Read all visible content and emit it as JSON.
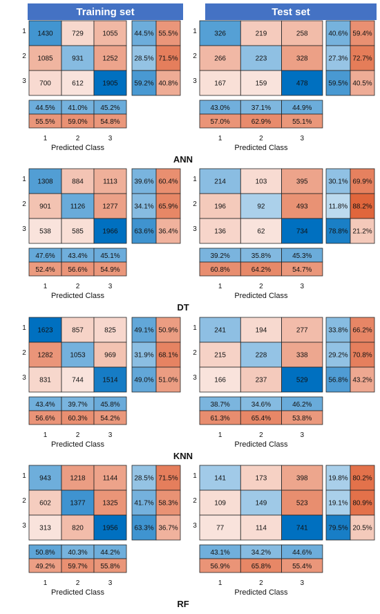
{
  "headers": {
    "train": "Training set",
    "test": "Test set"
  },
  "colors": {
    "blue": "#0070c0",
    "orange": "#e0643a",
    "header": "#4472c4"
  },
  "chart_data": {
    "type": "heatmap",
    "row_labels": [
      "1",
      "2",
      "3"
    ],
    "col_labels": [
      "1",
      "2",
      "3"
    ],
    "xlabel": "Predicted Class",
    "panels": [
      {
        "model": "ANN",
        "train": {
          "matrix": [
            [
              1430,
              729,
              1055
            ],
            [
              1085,
              931,
              1252
            ],
            [
              700,
              612,
              1905
            ]
          ],
          "row_summary": [
            [
              "44.5%",
              "55.5%"
            ],
            [
              "28.5%",
              "71.5%"
            ],
            [
              "59.2%",
              "40.8%"
            ]
          ],
          "col_summary": [
            [
              "44.5%",
              "41.0%",
              "45.2%"
            ],
            [
              "55.5%",
              "59.0%",
              "54.8%"
            ]
          ]
        },
        "test": {
          "matrix": [
            [
              326,
              219,
              258
            ],
            [
              266,
              223,
              328
            ],
            [
              167,
              159,
              478
            ]
          ],
          "row_summary": [
            [
              "40.6%",
              "59.4%"
            ],
            [
              "27.3%",
              "72.7%"
            ],
            [
              "59.5%",
              "40.5%"
            ]
          ],
          "col_summary": [
            [
              "43.0%",
              "37.1%",
              "44.9%"
            ],
            [
              "57.0%",
              "62.9%",
              "55.1%"
            ]
          ]
        }
      },
      {
        "model": "DT",
        "train": {
          "matrix": [
            [
              1308,
              884,
              1113
            ],
            [
              901,
              1126,
              1277
            ],
            [
              538,
              585,
              1966
            ]
          ],
          "row_summary": [
            [
              "39.6%",
              "60.4%"
            ],
            [
              "34.1%",
              "65.9%"
            ],
            [
              "63.6%",
              "36.4%"
            ]
          ],
          "col_summary": [
            [
              "47.6%",
              "43.4%",
              "45.1%"
            ],
            [
              "52.4%",
              "56.6%",
              "54.9%"
            ]
          ]
        },
        "test": {
          "matrix": [
            [
              214,
              103,
              395
            ],
            [
              196,
              92,
              493
            ],
            [
              136,
              62,
              734
            ]
          ],
          "row_summary": [
            [
              "30.1%",
              "69.9%"
            ],
            [
              "11.8%",
              "88.2%"
            ],
            [
              "78.8%",
              "21.2%"
            ]
          ],
          "col_summary": [
            [
              "39.2%",
              "35.8%",
              "45.3%"
            ],
            [
              "60.8%",
              "64.2%",
              "54.7%"
            ]
          ]
        }
      },
      {
        "model": "KNN",
        "train": {
          "matrix": [
            [
              1623,
              857,
              825
            ],
            [
              1282,
              1053,
              969
            ],
            [
              831,
              744,
              1514
            ]
          ],
          "row_summary": [
            [
              "49.1%",
              "50.9%"
            ],
            [
              "31.9%",
              "68.1%"
            ],
            [
              "49.0%",
              "51.0%"
            ]
          ],
          "col_summary": [
            [
              "43.4%",
              "39.7%",
              "45.8%"
            ],
            [
              "56.6%",
              "60.3%",
              "54.2%"
            ]
          ]
        },
        "test": {
          "matrix": [
            [
              241,
              194,
              277
            ],
            [
              215,
              228,
              338
            ],
            [
              166,
              237,
              529
            ]
          ],
          "row_summary": [
            [
              "33.8%",
              "66.2%"
            ],
            [
              "29.2%",
              "70.8%"
            ],
            [
              "56.8%",
              "43.2%"
            ]
          ],
          "col_summary": [
            [
              "38.7%",
              "34.6%",
              "46.2%"
            ],
            [
              "61.3%",
              "65.4%",
              "53.8%"
            ]
          ]
        }
      },
      {
        "model": "RF",
        "train": {
          "matrix": [
            [
              943,
              1218,
              1144
            ],
            [
              602,
              1377,
              1325
            ],
            [
              313,
              820,
              1956
            ]
          ],
          "row_summary": [
            [
              "28.5%",
              "71.5%"
            ],
            [
              "41.7%",
              "58.3%"
            ],
            [
              "63.3%",
              "36.7%"
            ]
          ],
          "col_summary": [
            [
              "50.8%",
              "40.3%",
              "44.2%"
            ],
            [
              "49.2%",
              "59.7%",
              "55.8%"
            ]
          ]
        },
        "test": {
          "matrix": [
            [
              141,
              173,
              398
            ],
            [
              109,
              149,
              523
            ],
            [
              77,
              114,
              741
            ]
          ],
          "row_summary": [
            [
              "19.8%",
              "80.2%"
            ],
            [
              "19.1%",
              "80.9%"
            ],
            [
              "79.5%",
              "20.5%"
            ]
          ],
          "col_summary": [
            [
              "43.1%",
              "34.2%",
              "44.6%"
            ],
            [
              "56.9%",
              "65.8%",
              "55.4%"
            ]
          ]
        }
      }
    ]
  }
}
